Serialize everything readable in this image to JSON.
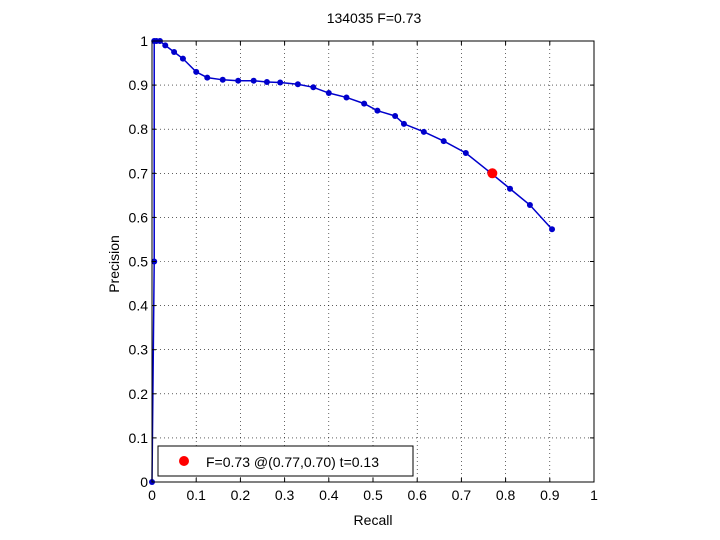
{
  "chart_data": {
    "type": "line",
    "title": "134035 F=0.73",
    "xlabel": "Recall",
    "ylabel": "Precision",
    "xlim": [
      0,
      1
    ],
    "ylim": [
      0,
      1
    ],
    "xticks": [
      0,
      0.1,
      0.2,
      0.3,
      0.4,
      0.5,
      0.6,
      0.7,
      0.8,
      0.9,
      1
    ],
    "yticks": [
      0,
      0.1,
      0.2,
      0.3,
      0.4,
      0.5,
      0.6,
      0.7,
      0.8,
      0.9,
      1
    ],
    "xtick_labels": [
      "0",
      "0.1",
      "0.2",
      "0.3",
      "0.4",
      "0.5",
      "0.6",
      "0.7",
      "0.8",
      "0.9",
      "1"
    ],
    "ytick_labels": [
      "0",
      "0.1",
      "0.2",
      "0.3",
      "0.4",
      "0.5",
      "0.6",
      "0.7",
      "0.8",
      "0.9",
      "1"
    ],
    "grid": true,
    "legend_position": "bottom-left",
    "series": [
      {
        "color": "#0000cc",
        "x": [
          0,
          0.005,
          0.005,
          0.01,
          0.018,
          0.03,
          0.05,
          0.07,
          0.1,
          0.125,
          0.16,
          0.195,
          0.23,
          0.26,
          0.29,
          0.33,
          0.365,
          0.4,
          0.44,
          0.48,
          0.51,
          0.55,
          0.57,
          0.615,
          0.66,
          0.71,
          0.765,
          0.81,
          0.855,
          0.905
        ],
        "y": [
          0,
          0.5,
          1.0,
          1.0,
          1.0,
          0.99,
          0.975,
          0.96,
          0.93,
          0.917,
          0.912,
          0.91,
          0.91,
          0.907,
          0.906,
          0.902,
          0.895,
          0.882,
          0.872,
          0.858,
          0.842,
          0.83,
          0.812,
          0.794,
          0.773,
          0.746,
          0.702,
          0.665,
          0.628,
          0.573
        ]
      }
    ],
    "highlight": {
      "color": "#ff0000",
      "x": 0.77,
      "y": 0.7,
      "label": "F=0.73 @(0.77,0.70) t=0.13"
    }
  }
}
